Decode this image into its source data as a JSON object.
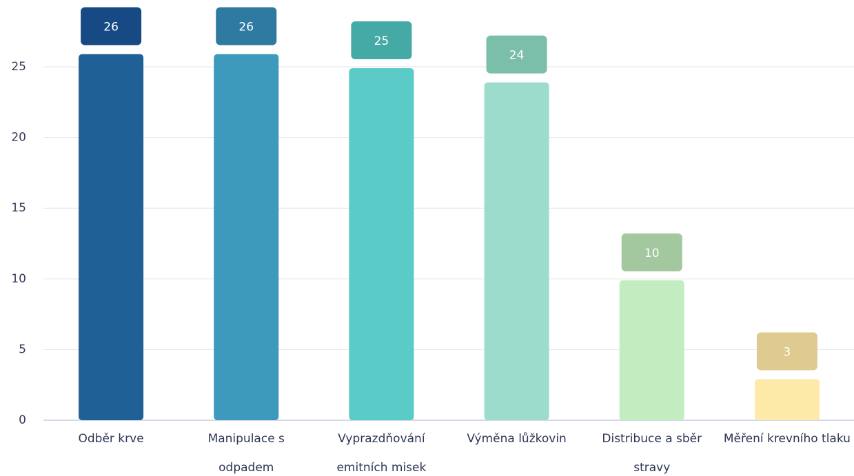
{
  "chart_data": {
    "type": "bar",
    "categories": [
      "Odběr krve",
      "Manipulace s odpadem",
      "Vyprazdňování emitních misek",
      "Výměna lůžkovin",
      "Distribuce a sběr stravy",
      "Měření krevního tlaku"
    ],
    "values": [
      26,
      26,
      25,
      24,
      10,
      3
    ],
    "colors": [
      "#1f6096",
      "#3d9abd",
      "#5acbc6",
      "#9cdccc",
      "#c3edc0",
      "#fde9a8"
    ],
    "label_colors": [
      "#174a85",
      "#2f7aa0",
      "#45aaa5",
      "#7bbfab",
      "#a3c79e",
      "#dfcb8f"
    ],
    "ylim": [
      0,
      28
    ],
    "yticks": [
      0,
      5,
      10,
      15,
      20,
      25
    ],
    "grid": true
  }
}
